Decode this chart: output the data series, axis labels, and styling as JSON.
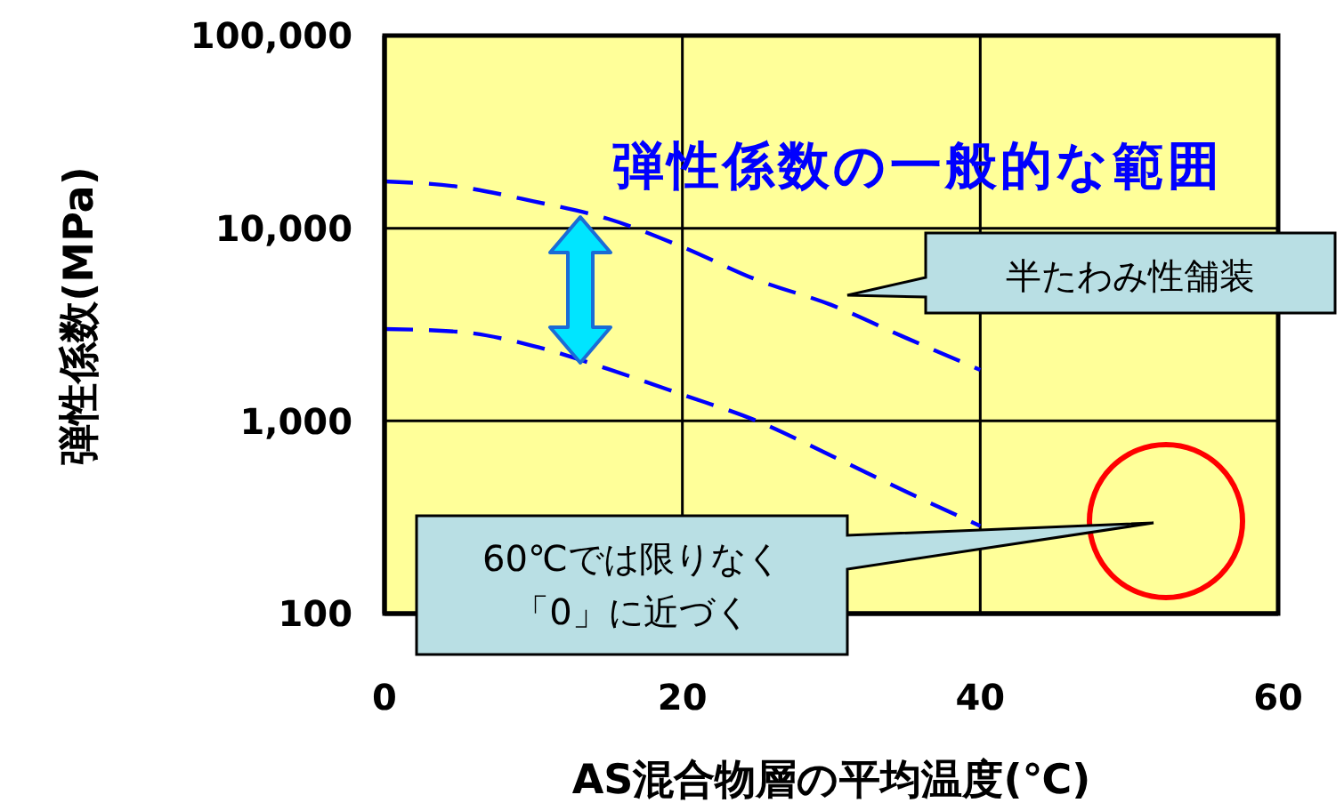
{
  "chart_data": {
    "type": "line",
    "xlabel": "AS混合物層の平均温度(℃)",
    "ylabel": "弾性係数(MPa)",
    "x": [
      0,
      5,
      10,
      15,
      20,
      25,
      30,
      35,
      40
    ],
    "series": [
      {
        "color": "#0000ff",
        "values": [
          17500,
          16400,
          13800,
          11200,
          8000,
          5400,
          4000,
          2700,
          1840
        ]
      },
      {
        "color": "#0000ff",
        "values": [
          3000,
          2900,
          2450,
          1860,
          1370,
          1000,
          660,
          430,
          285
        ]
      }
    ],
    "xlim": [
      0,
      60
    ],
    "xticks": [
      0,
      20,
      40,
      60
    ],
    "ylim": [
      100,
      100000
    ],
    "yticks": [
      {
        "value": 100,
        "label": "100"
      },
      {
        "value": 1000,
        "label": "1,000"
      },
      {
        "value": 10000,
        "label": "10,000"
      },
      {
        "value": 100000,
        "label": "100,000"
      }
    ],
    "log": true,
    "grid": true,
    "marker": "none",
    "line_style": "dashed",
    "annotations": [
      "弾性係数の一般的な範囲",
      "半たわみ性舗装",
      "60℃では限りなく",
      "「0」に近づく"
    ]
  }
}
